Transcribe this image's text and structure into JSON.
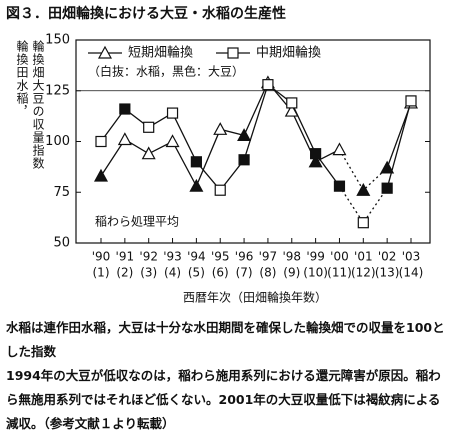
{
  "chart_data": {
    "type": "line",
    "title": "図３．田畑輪換における大豆・水稲の生産性",
    "y_label": [
      "輪換田水稲，",
      "輪換畑大豆の収量指数"
    ],
    "x_label": "西暦年次（田畑輪換年数）",
    "legend_note": "（白抜：水稲，黒色：大豆）",
    "annotation": "稲わら処理平均",
    "categories": [
      "'90",
      "'91",
      "'92",
      "'93",
      "'94",
      "'95",
      "'96",
      "'97",
      "'98",
      "'99",
      "'00",
      "'01",
      "'02",
      "'03"
    ],
    "x_sublabels": [
      "(1)",
      "(2)",
      "(3)",
      "(4)",
      "(5)",
      "(6)",
      "(7)",
      "(8)",
      "(9)",
      "(10)",
      "(11)",
      "(12)",
      "(13)",
      "(14)"
    ],
    "ylim": [
      50,
      150
    ],
    "yticks": [
      50,
      75,
      100,
      125,
      150
    ],
    "reference_lines": [
      125
    ],
    "dashed_range": [
      10,
      12
    ],
    "series": [
      {
        "name": "短期畑輪換",
        "marker": "triangle",
        "color": "#111",
        "values": [
          83,
          101,
          94,
          100,
          78,
          106,
          103,
          129,
          115,
          90,
          96,
          76,
          87,
          119
        ],
        "marker_colors": [
          "#111",
          "#fff",
          "#fff",
          "#fff",
          "#111",
          "#fff",
          "#111",
          "#fff",
          "#fff",
          "#111",
          "#fff",
          "#111",
          "#111",
          "#fff"
        ]
      },
      {
        "name": "中期畑輪換",
        "marker": "square",
        "color": "#111",
        "values": [
          100,
          116,
          107,
          114,
          90,
          76,
          91,
          128,
          119,
          94,
          78,
          60,
          77,
          120
        ],
        "marker_colors": [
          "#fff",
          "#111",
          "#fff",
          "#fff",
          "#111",
          "#fff",
          "#111",
          "#fff",
          "#fff",
          "#111",
          "#111",
          "#fff",
          "#111",
          "#fff"
        ]
      }
    ]
  },
  "caption": [
    "水稲は連作田水稲，大豆は十分な水田期間を確保した輪換畑での収量を100とした指数",
    "1994年の大豆が低収なのは，稲わら施用系列における還元障害が原因。稲わら無施用系列ではそれほど低くない。2001年の大豆収量低下は褐紋病による減収。（参考文献１より転載）"
  ]
}
